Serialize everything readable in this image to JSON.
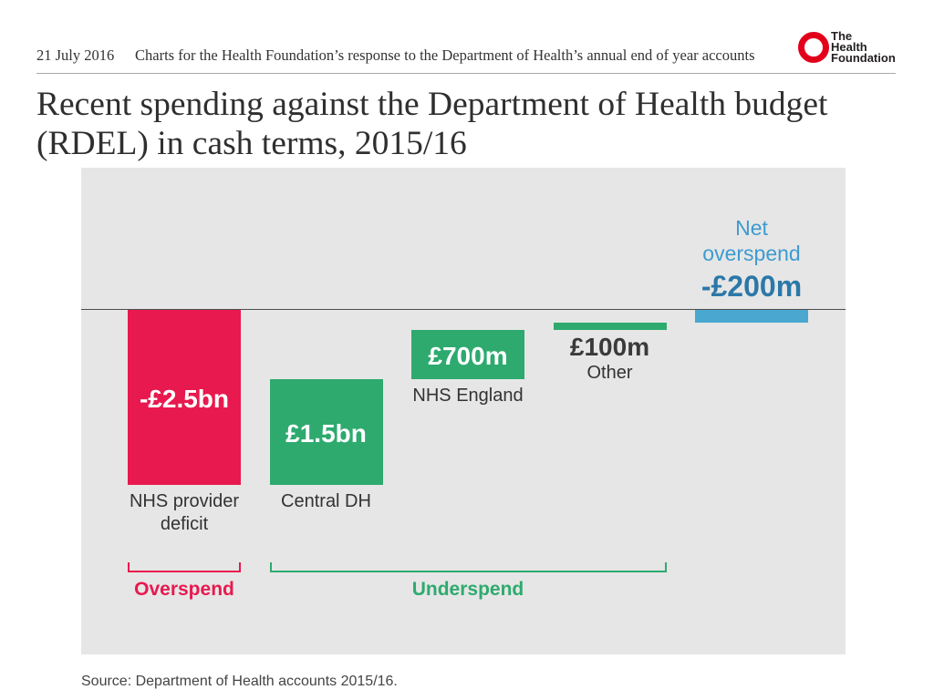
{
  "header": {
    "date": "21 July 2016",
    "subtitle": "Charts for the Health Foundation’s response to the Department of Health’s annual end of year accounts",
    "logo": {
      "icon": "ring-logo-icon",
      "lines": [
        "The",
        "Health",
        "Foundation"
      ],
      "ring_color": "#e3001b",
      "text_color": "#231f20"
    }
  },
  "chart_data": {
    "type": "bar",
    "waterfall": true,
    "title": "Recent spending against the Department of Health budget (RDEL) in cash terms, 2015/16",
    "categories": [
      "NHS provider deficit",
      "Central DH",
      "NHS England",
      "Other",
      "Net overspend"
    ],
    "values": [
      -2.5,
      1.5,
      0.7,
      0.1,
      -0.2
    ],
    "value_labels": [
      "-£2.5bn",
      "£1.5bn",
      "£700m",
      "£100m",
      "-£200m"
    ],
    "is_total": [
      false,
      false,
      false,
      false,
      true
    ],
    "bar_colors": [
      "#e8194f",
      "#2eaa6f",
      "#2eaa6f",
      "#2eaa6f",
      "#4aa8d0"
    ],
    "colors": {
      "inside_value": "#ffffff",
      "outside_value": "#3a3a3a",
      "category": "#333333",
      "total_category": "#3d9bd0",
      "total_value": "#2b78a8",
      "zero_line": "#4d4d4d",
      "plot_background": "#e6e6e6"
    },
    "groups": [
      {
        "label": "Overspend",
        "from": 0,
        "to": 0,
        "color": "#e8194f"
      },
      {
        "label": "Underspend",
        "from": 1,
        "to": 3,
        "color": "#2eaa6f"
      }
    ],
    "source": "Source: Department of Health accounts 2015/16."
  }
}
